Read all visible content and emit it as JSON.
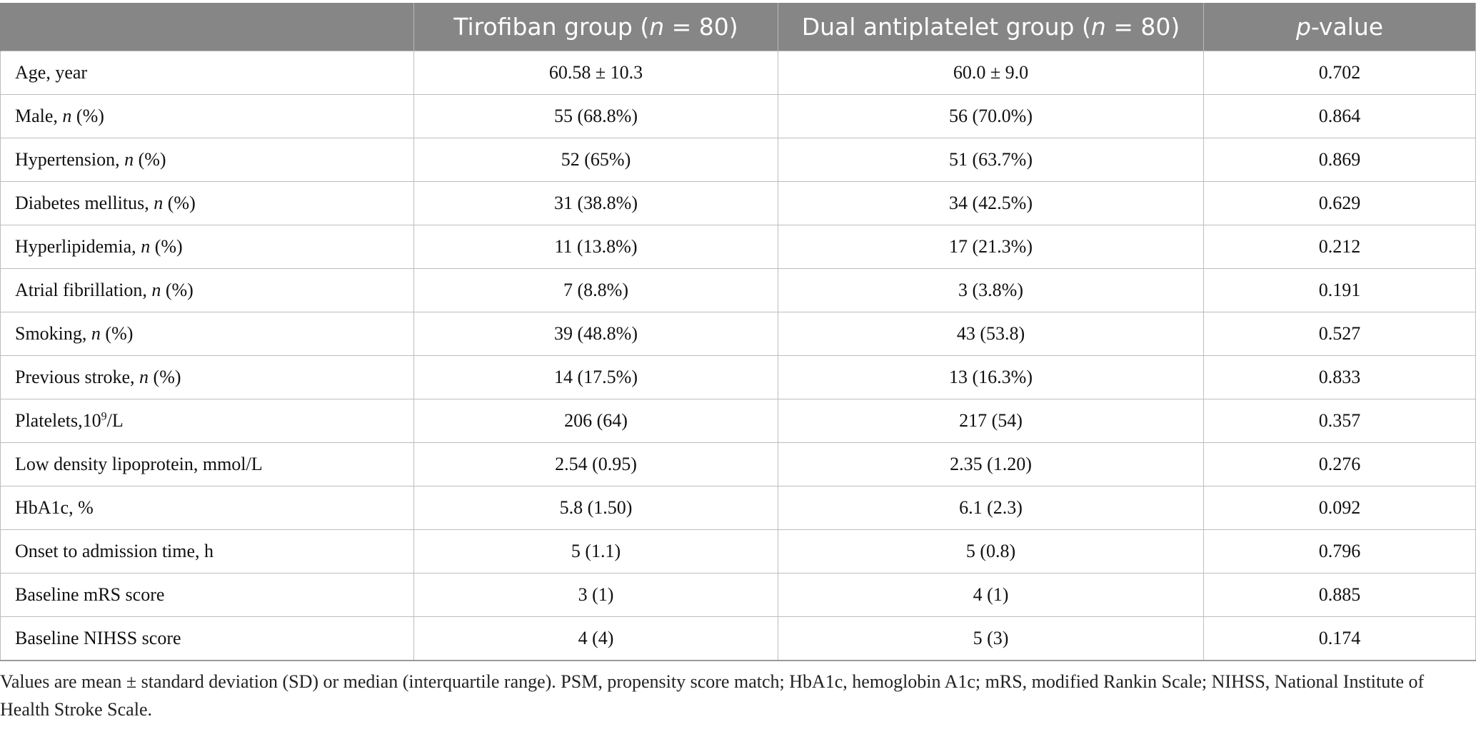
{
  "table": {
    "headers": {
      "col1": "",
      "col2_pre": "Tirofiban group (",
      "col2_n": "n",
      "col2_post": " = 80)",
      "col3_pre": "Dual antiplatelet group (",
      "col3_n": "n",
      "col3_post": " = 80)",
      "col4_p": "p",
      "col4_post": "-value"
    },
    "rows": [
      {
        "label_pre": "Age, year",
        "label_it": "",
        "label_post": "",
        "label_sup": "",
        "label_end": "",
        "tirofiban": "60.58 ± 10.3",
        "dual": "60.0 ± 9.0",
        "p": "0.702"
      },
      {
        "label_pre": "Male, ",
        "label_it": "n",
        "label_post": " (%)",
        "label_sup": "",
        "label_end": "",
        "tirofiban": "55 (68.8%)",
        "dual": "56 (70.0%)",
        "p": "0.864"
      },
      {
        "label_pre": "Hypertension, ",
        "label_it": "n",
        "label_post": " (%)",
        "label_sup": "",
        "label_end": "",
        "tirofiban": "52 (65%)",
        "dual": "51 (63.7%)",
        "p": "0.869"
      },
      {
        "label_pre": "Diabetes mellitus, ",
        "label_it": "n",
        "label_post": " (%)",
        "label_sup": "",
        "label_end": "",
        "tirofiban": "31 (38.8%)",
        "dual": "34 (42.5%)",
        "p": "0.629"
      },
      {
        "label_pre": "Hyperlipidemia, ",
        "label_it": "n",
        "label_post": " (%)",
        "label_sup": "",
        "label_end": "",
        "tirofiban": "11 (13.8%)",
        "dual": "17 (21.3%)",
        "p": "0.212"
      },
      {
        "label_pre": "Atrial fibrillation, ",
        "label_it": "n",
        "label_post": " (%)",
        "label_sup": "",
        "label_end": "",
        "tirofiban": "7 (8.8%)",
        "dual": "3 (3.8%)",
        "p": "0.191"
      },
      {
        "label_pre": "Smoking, ",
        "label_it": "n",
        "label_post": " (%)",
        "label_sup": "",
        "label_end": "",
        "tirofiban": "39 (48.8%)",
        "dual": "43 (53.8)",
        "p": "0.527"
      },
      {
        "label_pre": "Previous stroke, ",
        "label_it": "n",
        "label_post": " (%)",
        "label_sup": "",
        "label_end": "",
        "tirofiban": "14 (17.5%)",
        "dual": "13 (16.3%)",
        "p": "0.833"
      },
      {
        "label_pre": "Platelets,10",
        "label_it": "",
        "label_post": "",
        "label_sup": "9",
        "label_end": "/L",
        "tirofiban": "206 (64)",
        "dual": "217 (54)",
        "p": "0.357"
      },
      {
        "label_pre": "Low density lipoprotein, mmol/L",
        "label_it": "",
        "label_post": "",
        "label_sup": "",
        "label_end": "",
        "tirofiban": "2.54 (0.95)",
        "dual": "2.35 (1.20)",
        "p": "0.276"
      },
      {
        "label_pre": "HbA1c, %",
        "label_it": "",
        "label_post": "",
        "label_sup": "",
        "label_end": "",
        "tirofiban": "5.8 (1.50)",
        "dual": "6.1 (2.3)",
        "p": "0.092"
      },
      {
        "label_pre": "Onset to admission time, h",
        "label_it": "",
        "label_post": "",
        "label_sup": "",
        "label_end": "",
        "tirofiban": "5 (1.1)",
        "dual": "5 (0.8)",
        "p": "0.796"
      },
      {
        "label_pre": "Baseline mRS score",
        "label_it": "",
        "label_post": "",
        "label_sup": "",
        "label_end": "",
        "tirofiban": "3 (1)",
        "dual": "4 (1)",
        "p": "0.885"
      },
      {
        "label_pre": "Baseline NIHSS score",
        "label_it": "",
        "label_post": "",
        "label_sup": "",
        "label_end": "",
        "tirofiban": "4 (4)",
        "dual": "5 (3)",
        "p": "0.174"
      }
    ]
  },
  "footnote": "Values are mean ± standard deviation (SD) or median (interquartile range). PSM, propensity score match; HbA1c, hemoglobin A1c; mRS, modified Rankin Scale; NIHSS, National Institute of Health Stroke Scale.",
  "colors": {
    "header_bg": "#858685",
    "header_text": "#ffffff",
    "grid": "#bdbdbd"
  }
}
